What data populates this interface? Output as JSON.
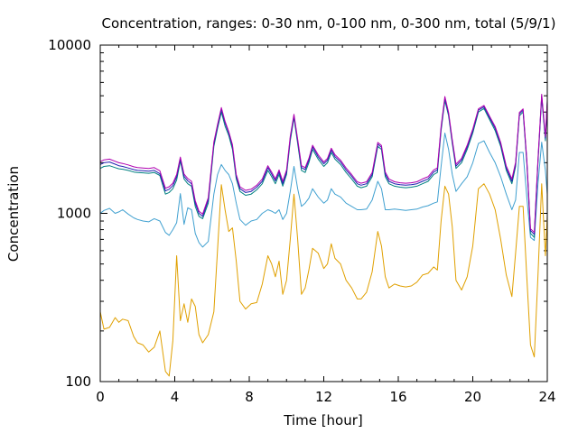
{
  "chart_data": {
    "type": "line",
    "title": "Concentration, ranges: 0-30 nm, 0-100 nm, 0-300 nm, total (5/9/1)",
    "xlabel": "Time [hour]",
    "ylabel": "Concentration",
    "xlim": [
      0,
      24
    ],
    "ylim": [
      100,
      10000
    ],
    "yscale": "log",
    "grid": false,
    "x_ticks": [
      "0",
      "4",
      "8",
      "12",
      "16",
      "20",
      "24"
    ],
    "x_tick_values": [
      0,
      4,
      8,
      12,
      16,
      20,
      24
    ],
    "y_ticks": [
      "100",
      "1000",
      "10000"
    ],
    "y_tick_values": [
      100,
      1000,
      10000
    ],
    "series": [
      {
        "color": "#e0a000",
        "x": [
          0,
          0.2,
          0.5,
          0.8,
          1.0,
          1.2,
          1.5,
          1.8,
          2.0,
          2.3,
          2.6,
          2.9,
          3.2,
          3.5,
          3.7,
          3.9,
          4.1,
          4.3,
          4.5,
          4.7,
          4.9,
          5.1,
          5.3,
          5.5,
          5.8,
          6.1,
          6.3,
          6.5,
          6.7,
          6.9,
          7.1,
          7.3,
          7.5,
          7.8,
          8.1,
          8.4,
          8.7,
          9.0,
          9.2,
          9.4,
          9.6,
          9.8,
          10.0,
          10.2,
          10.4,
          10.6,
          10.8,
          11.0,
          11.2,
          11.4,
          11.7,
          12.0,
          12.2,
          12.4,
          12.6,
          12.9,
          13.2,
          13.5,
          13.8,
          14.0,
          14.3,
          14.6,
          14.9,
          15.1,
          15.3,
          15.5,
          15.8,
          16.1,
          16.4,
          16.7,
          17.0,
          17.3,
          17.6,
          17.9,
          18.1,
          18.3,
          18.5,
          18.7,
          18.9,
          19.1,
          19.4,
          19.7,
          20.0,
          20.3,
          20.6,
          20.9,
          21.2,
          21.5,
          21.8,
          22.1,
          22.3,
          22.5,
          22.7,
          22.9,
          23.1,
          23.3,
          23.5,
          23.7,
          23.9,
          24.0
        ],
        "values": [
          260,
          205,
          210,
          240,
          225,
          235,
          230,
          185,
          170,
          165,
          150,
          160,
          200,
          115,
          108,
          175,
          560,
          230,
          290,
          225,
          310,
          280,
          190,
          170,
          190,
          260,
          610,
          1480,
          1050,
          780,
          820,
          520,
          300,
          270,
          290,
          295,
          380,
          560,
          500,
          420,
          520,
          330,
          400,
          700,
          1300,
          700,
          330,
          360,
          460,
          620,
          580,
          470,
          500,
          660,
          540,
          500,
          400,
          360,
          310,
          310,
          340,
          450,
          780,
          640,
          420,
          360,
          380,
          370,
          365,
          370,
          390,
          430,
          440,
          480,
          460,
          900,
          1450,
          1300,
          830,
          400,
          350,
          420,
          640,
          1400,
          1500,
          1300,
          1050,
          700,
          430,
          320,
          580,
          1100,
          1100,
          420,
          165,
          140,
          430,
          1500,
          560,
          970
        ]
      },
      {
        "color": "#40a0d0",
        "x": [
          0,
          0.2,
          0.5,
          0.8,
          1.0,
          1.2,
          1.5,
          1.8,
          2.0,
          2.3,
          2.6,
          2.9,
          3.2,
          3.5,
          3.7,
          3.9,
          4.1,
          4.3,
          4.5,
          4.7,
          4.9,
          5.1,
          5.3,
          5.5,
          5.8,
          6.1,
          6.3,
          6.5,
          6.7,
          6.9,
          7.1,
          7.3,
          7.5,
          7.8,
          8.1,
          8.4,
          8.7,
          9.0,
          9.2,
          9.4,
          9.6,
          9.8,
          10.0,
          10.2,
          10.4,
          10.6,
          10.8,
          11.0,
          11.2,
          11.4,
          11.7,
          12.0,
          12.2,
          12.4,
          12.6,
          12.9,
          13.2,
          13.5,
          13.8,
          14.0,
          14.3,
          14.6,
          14.9,
          15.1,
          15.3,
          15.5,
          15.8,
          16.1,
          16.4,
          16.7,
          17.0,
          17.3,
          17.6,
          17.9,
          18.1,
          18.3,
          18.5,
          18.7,
          18.9,
          19.1,
          19.4,
          19.7,
          20.0,
          20.3,
          20.6,
          20.9,
          21.2,
          21.5,
          21.8,
          22.1,
          22.3,
          22.5,
          22.7,
          22.9,
          23.1,
          23.3,
          23.5,
          23.7,
          23.9,
          24.0
        ],
        "values": [
          1000,
          1040,
          1070,
          1000,
          1020,
          1050,
          990,
          940,
          920,
          900,
          890,
          930,
          900,
          770,
          740,
          800,
          880,
          1310,
          860,
          1080,
          1050,
          760,
          670,
          630,
          680,
          1300,
          1700,
          1950,
          1800,
          1700,
          1500,
          1150,
          920,
          850,
          900,
          920,
          1000,
          1050,
          1030,
          1000,
          1050,
          920,
          1000,
          1350,
          1900,
          1400,
          1100,
          1150,
          1230,
          1400,
          1250,
          1150,
          1200,
          1400,
          1300,
          1250,
          1150,
          1100,
          1050,
          1050,
          1060,
          1200,
          1550,
          1400,
          1050,
          1050,
          1060,
          1050,
          1040,
          1050,
          1060,
          1090,
          1110,
          1150,
          1170,
          1900,
          3000,
          2400,
          1700,
          1350,
          1500,
          1650,
          2000,
          2600,
          2700,
          2300,
          2000,
          1650,
          1300,
          1050,
          1200,
          2300,
          2300,
          1250,
          720,
          690,
          1500,
          2650,
          1800,
          1300
        ]
      },
      {
        "color": "#008080",
        "x": [
          0,
          0.2,
          0.5,
          0.8,
          1.0,
          1.2,
          1.5,
          1.8,
          2.0,
          2.3,
          2.6,
          2.9,
          3.2,
          3.5,
          3.7,
          3.9,
          4.1,
          4.3,
          4.5,
          4.7,
          4.9,
          5.1,
          5.3,
          5.5,
          5.8,
          6.1,
          6.3,
          6.5,
          6.7,
          6.9,
          7.1,
          7.3,
          7.5,
          7.8,
          8.1,
          8.4,
          8.7,
          9.0,
          9.2,
          9.4,
          9.6,
          9.8,
          10.0,
          10.2,
          10.4,
          10.6,
          10.8,
          11.0,
          11.2,
          11.4,
          11.7,
          12.0,
          12.2,
          12.4,
          12.6,
          12.9,
          13.2,
          13.5,
          13.8,
          14.0,
          14.3,
          14.6,
          14.9,
          15.1,
          15.3,
          15.5,
          15.8,
          16.1,
          16.4,
          16.7,
          17.0,
          17.3,
          17.6,
          17.9,
          18.1,
          18.3,
          18.5,
          18.7,
          18.9,
          19.1,
          19.4,
          19.7,
          20.0,
          20.3,
          20.6,
          20.9,
          21.2,
          21.5,
          21.8,
          22.1,
          22.3,
          22.5,
          22.7,
          22.9,
          23.1,
          23.3,
          23.5,
          23.7,
          23.9,
          24.0
        ],
        "values": [
          1850,
          1900,
          1920,
          1870,
          1840,
          1830,
          1800,
          1760,
          1750,
          1740,
          1730,
          1750,
          1680,
          1300,
          1330,
          1400,
          1580,
          2050,
          1600,
          1500,
          1450,
          1100,
          960,
          930,
          1150,
          2500,
          3200,
          4000,
          3300,
          2900,
          2400,
          1600,
          1350,
          1280,
          1300,
          1380,
          1500,
          1800,
          1650,
          1500,
          1700,
          1450,
          1700,
          2700,
          3700,
          2600,
          1800,
          1750,
          2000,
          2400,
          2100,
          1900,
          2000,
          2300,
          2100,
          1950,
          1750,
          1600,
          1450,
          1420,
          1450,
          1650,
          2500,
          2400,
          1650,
          1500,
          1450,
          1430,
          1420,
          1430,
          1450,
          1500,
          1550,
          1700,
          1750,
          3100,
          4700,
          3800,
          2600,
          1850,
          2000,
          2400,
          3000,
          4000,
          4200,
          3600,
          3100,
          2500,
          1800,
          1500,
          1900,
          3800,
          4000,
          2000,
          760,
          720,
          2000,
          4900,
          2700,
          4500
        ]
      },
      {
        "color": "#2020b0",
        "x": [
          0,
          0.2,
          0.5,
          0.8,
          1.0,
          1.2,
          1.5,
          1.8,
          2.0,
          2.3,
          2.6,
          2.9,
          3.2,
          3.5,
          3.7,
          3.9,
          4.1,
          4.3,
          4.5,
          4.7,
          4.9,
          5.1,
          5.3,
          5.5,
          5.8,
          6.1,
          6.3,
          6.5,
          6.7,
          6.9,
          7.1,
          7.3,
          7.5,
          7.8,
          8.1,
          8.4,
          8.7,
          9.0,
          9.2,
          9.4,
          9.6,
          9.8,
          10.0,
          10.2,
          10.4,
          10.6,
          10.8,
          11.0,
          11.2,
          11.4,
          11.7,
          12.0,
          12.2,
          12.4,
          12.6,
          12.9,
          13.2,
          13.5,
          13.8,
          14.0,
          14.3,
          14.6,
          14.9,
          15.1,
          15.3,
          15.5,
          15.8,
          16.1,
          16.4,
          16.7,
          17.0,
          17.3,
          17.6,
          17.9,
          18.1,
          18.3,
          18.5,
          18.7,
          18.9,
          19.1,
          19.4,
          19.7,
          20.0,
          20.3,
          20.6,
          20.9,
          21.2,
          21.5,
          21.8,
          22.1,
          22.3,
          22.5,
          22.7,
          22.9,
          23.1,
          23.3,
          23.5,
          23.7,
          23.9,
          24.0
        ],
        "values": [
          1950,
          2000,
          2020,
          1960,
          1920,
          1900,
          1860,
          1820,
          1800,
          1790,
          1780,
          1800,
          1720,
          1360,
          1390,
          1460,
          1650,
          2100,
          1660,
          1560,
          1500,
          1150,
          1000,
          960,
          1200,
          2600,
          3300,
          4150,
          3450,
          3000,
          2500,
          1660,
          1400,
          1330,
          1350,
          1430,
          1550,
          1870,
          1710,
          1560,
          1760,
          1500,
          1760,
          2800,
          3800,
          2700,
          1870,
          1820,
          2070,
          2480,
          2170,
          1970,
          2070,
          2380,
          2170,
          2020,
          1810,
          1660,
          1500,
          1470,
          1500,
          1700,
          2580,
          2470,
          1710,
          1550,
          1500,
          1480,
          1470,
          1480,
          1500,
          1550,
          1600,
          1760,
          1810,
          3200,
          4850,
          3900,
          2680,
          1910,
          2070,
          2480,
          3100,
          4100,
          4300,
          3700,
          3200,
          2580,
          1860,
          1550,
          1960,
          3900,
          4100,
          2060,
          790,
          750,
          2060,
          5000,
          2800,
          4600
        ]
      },
      {
        "color": "#b000b0",
        "x": [
          0,
          0.2,
          0.5,
          0.8,
          1.0,
          1.2,
          1.5,
          1.8,
          2.0,
          2.3,
          2.6,
          2.9,
          3.2,
          3.5,
          3.7,
          3.9,
          4.1,
          4.3,
          4.5,
          4.7,
          4.9,
          5.1,
          5.3,
          5.5,
          5.8,
          6.1,
          6.3,
          6.5,
          6.7,
          6.9,
          7.1,
          7.3,
          7.5,
          7.8,
          8.1,
          8.4,
          8.7,
          9.0,
          9.2,
          9.4,
          9.6,
          9.8,
          10.0,
          10.2,
          10.4,
          10.6,
          10.8,
          11.0,
          11.2,
          11.4,
          11.7,
          12.0,
          12.2,
          12.4,
          12.6,
          12.9,
          13.2,
          13.5,
          13.8,
          14.0,
          14.3,
          14.6,
          14.9,
          15.1,
          15.3,
          15.5,
          15.8,
          16.1,
          16.4,
          16.7,
          17.0,
          17.3,
          17.6,
          17.9,
          18.1,
          18.3,
          18.5,
          18.7,
          18.9,
          19.1,
          19.4,
          19.7,
          20.0,
          20.3,
          20.6,
          20.9,
          21.2,
          21.5,
          21.8,
          22.1,
          22.3,
          22.5,
          22.7,
          22.9,
          23.1,
          23.3,
          23.5,
          23.7,
          23.9,
          24.0
        ],
        "values": [
          2030,
          2080,
          2100,
          2040,
          2000,
          1980,
          1940,
          1890,
          1870,
          1860,
          1850,
          1870,
          1790,
          1410,
          1440,
          1510,
          1700,
          2160,
          1710,
          1610,
          1550,
          1190,
          1030,
          990,
          1240,
          2660,
          3380,
          4250,
          3520,
          3060,
          2560,
          1700,
          1440,
          1370,
          1390,
          1470,
          1600,
          1920,
          1760,
          1600,
          1810,
          1550,
          1810,
          2870,
          3880,
          2760,
          1920,
          1870,
          2120,
          2540,
          2230,
          2020,
          2120,
          2440,
          2230,
          2070,
          1860,
          1700,
          1540,
          1510,
          1540,
          1750,
          2640,
          2530,
          1760,
          1600,
          1540,
          1520,
          1510,
          1520,
          1540,
          1600,
          1650,
          1810,
          1860,
          3280,
          4950,
          3980,
          2740,
          1960,
          2120,
          2540,
          3170,
          4180,
          4380,
          3780,
          3280,
          2640,
          1910,
          1600,
          2010,
          3980,
          4180,
          2110,
          810,
          770,
          2110,
          5100,
          2870,
          4700
        ]
      }
    ]
  }
}
